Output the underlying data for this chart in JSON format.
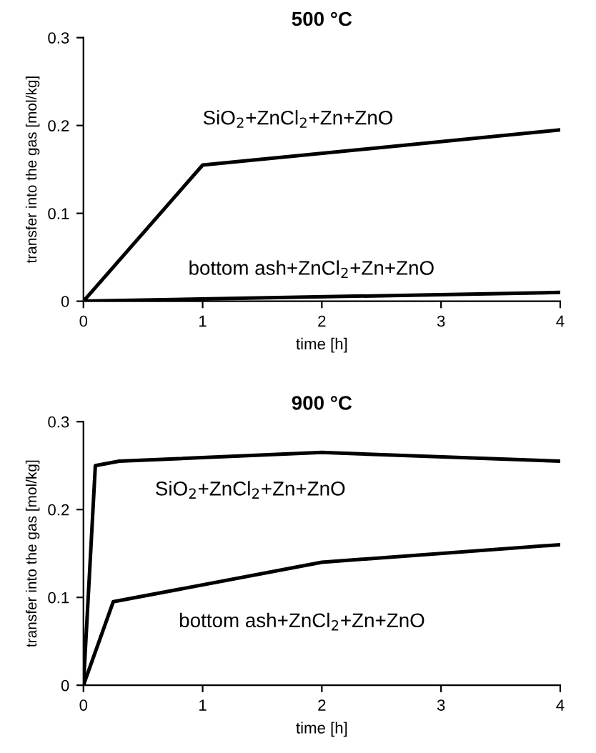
{
  "chart_data": [
    {
      "type": "line",
      "title": "500 °C",
      "xlabel": "time [h]",
      "ylabel": "transfer into the gas [mol/kg]",
      "xlim": [
        0,
        4
      ],
      "xticks": [
        0,
        1,
        2,
        3,
        4
      ],
      "ylim": [
        0,
        0.3
      ],
      "yticks": [
        0,
        0.1,
        0.2,
        0.3
      ],
      "grid": false,
      "legend": false,
      "marker": "none",
      "line_style": "solid",
      "series": [
        {
          "name": "SiO$_{2}$+ZnCl$_{2}$+Zn+ZnO",
          "color": "#000000",
          "x": [
            0,
            1,
            4
          ],
          "values": [
            0,
            0.155,
            0.195
          ]
        },
        {
          "name": "bottom ash+ZnCl$_{2}$+Zn+ZnO",
          "color": "#000000",
          "x": [
            0,
            4
          ],
          "values": [
            0,
            0.01
          ]
        }
      ]
    },
    {
      "type": "line",
      "title": "900 °C",
      "xlabel": "time [h]",
      "ylabel": "transfer into the gas [mol/kg]",
      "xlim": [
        0,
        4
      ],
      "xticks": [
        0,
        1,
        2,
        3,
        4
      ],
      "ylim": [
        0,
        0.3
      ],
      "yticks": [
        0,
        0.1,
        0.2,
        0.3
      ],
      "grid": false,
      "legend": false,
      "marker": "none",
      "line_style": "solid",
      "series": [
        {
          "name": "SiO$_{2}$+ZnCl$_{2}$+Zn+ZnO",
          "color": "#000000",
          "x": [
            0,
            0.1,
            0.3,
            2,
            4
          ],
          "values": [
            0,
            0.25,
            0.255,
            0.265,
            0.255
          ]
        },
        {
          "name": "bottom ash+ZnCl$_{2}$+Zn+ZnO",
          "color": "#000000",
          "x": [
            0,
            0.25,
            2,
            4
          ],
          "values": [
            0,
            0.095,
            0.14,
            0.16
          ]
        }
      ]
    }
  ]
}
